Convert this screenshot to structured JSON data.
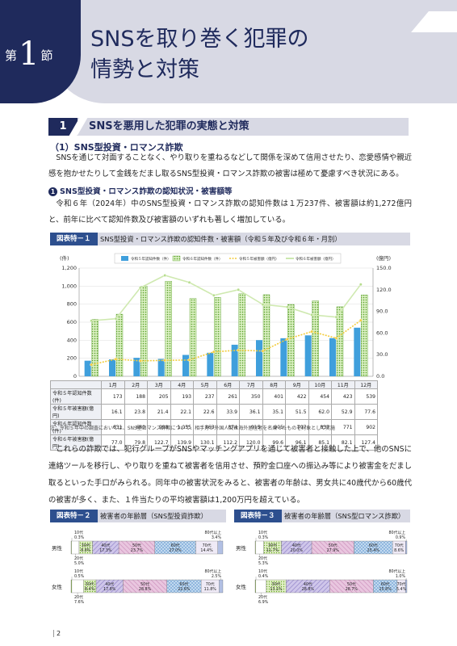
{
  "section": {
    "prefix": "第",
    "number": "1",
    "suffix": "節",
    "title_line1": "SNSを取り巻く犯罪の",
    "title_line2": "情勢と対策"
  },
  "heading1": {
    "number": "1",
    "text": "SNSを悪用した犯罪の実態と対策"
  },
  "subheading": "（1）SNS型投資・ロマンス詐欺",
  "para1": "SNSを通じて対面することなく、やり取りを重ねるなどして関係を深めて信用させたり、恋愛感情や親近感を抱かせたりして金銭をだまし取るSNS型投資・ロマンス詐欺の被害は極めて憂慮すべき状況にある。",
  "bullet": {
    "num": "1",
    "text": "SNS型投資・ロマンス詐欺の認知状況・被害額等"
  },
  "para2": "令和６年（2024年）中のSNS型投資・ロマンス詐欺の認知件数は１万237件、被害額は約1,272億円と、前年に比べて認知件数及び被害額のいずれも著しく増加している。",
  "fig1": {
    "tag": "図表特－１",
    "title": "SNS型投資・ロマンス詐欺の認知件数・被害額（令和５年及び令和６年・月別）"
  },
  "chart_data": {
    "type": "bar",
    "y_left_label": "(件)",
    "y_right_label": "(億円)",
    "ylim": [
      0,
      1200
    ],
    "ylim_right": [
      0,
      150
    ],
    "left_ticks": [
      "0",
      "200",
      "400",
      "600",
      "800",
      "1,000",
      "1,200"
    ],
    "right_ticks": [
      "0.0",
      "30.0",
      "60.0",
      "90.0",
      "120.0",
      "150.0"
    ],
    "categories": [
      "1月",
      "2月",
      "3月",
      "4月",
      "5月",
      "6月",
      "7月",
      "8月",
      "9月",
      "10月",
      "11月",
      "12月"
    ],
    "legend": [
      "令和５年認知件数（件）",
      "令和６年認知件数（件）",
      "令和５年被害額（億円）",
      "令和６年被害額（億円）"
    ],
    "series": [
      {
        "name": "令和５年認知件数(件)",
        "kind": "bar",
        "axis": "left",
        "color": "#3f9fdc",
        "values": [
          173,
          188,
          205,
          193,
          237,
          261,
          350,
          401,
          422,
          454,
          423,
          539
        ]
      },
      {
        "name": "令和６年認知件数(件)",
        "kind": "bar",
        "axis": "left",
        "color": "#8cc63f",
        "values": [
          631,
          689,
          998,
          1055,
          863,
          874,
          915,
          905,
          797,
          837,
          771,
          902
        ]
      },
      {
        "name": "令和５年被害額(億円)",
        "kind": "line",
        "axis": "right",
        "color": "#f2cc3d",
        "values": [
          16.1,
          23.8,
          21.4,
          22.1,
          22.6,
          33.9,
          36.1,
          35.1,
          51.5,
          62.0,
          52.9,
          77.6
        ]
      },
      {
        "name": "令和６年被害額(億円)",
        "kind": "line",
        "axis": "right",
        "color": "#cfe9b0",
        "values": [
          77.0,
          79.8,
          122.7,
          139.9,
          130.1,
          112.2,
          120.0,
          99.6,
          96.1,
          85.1,
          82.1,
          127.4
        ]
      }
    ],
    "table_rows": [
      {
        "label": "令和５年認知件数(件)",
        "cells": [
          "173",
          "188",
          "205",
          "193",
          "237",
          "261",
          "350",
          "401",
          "422",
          "454",
          "423",
          "539"
        ]
      },
      {
        "label": "令和５年被害額(億円)",
        "cells": [
          "16.1",
          "23.8",
          "21.4",
          "22.1",
          "22.6",
          "33.9",
          "36.1",
          "35.1",
          "51.5",
          "62.0",
          "52.9",
          "77.6"
        ]
      },
      {
        "label": "令和６年認知件数(件)",
        "cells": [
          "631",
          "689",
          "998",
          "1,055",
          "863",
          "874",
          "915",
          "905",
          "797",
          "837",
          "771",
          "902"
        ]
      },
      {
        "label": "令和６年被害額(億円)",
        "cells": [
          "77.0",
          "79.8",
          "122.7",
          "139.9",
          "130.1",
          "112.2",
          "120.0",
          "99.6",
          "96.1",
          "85.1",
          "82.1",
          "127.4"
        ]
      }
    ]
  },
  "fig1_note": "注：令和５年中の調査においては、SNS型ロマンス詐欺について、相手方が外国人又は海外居住者を名乗ったものを対象として実施",
  "para3": "これらの詐欺では、犯行グループがSNSやマッチングアプリを通じて被害者と接触した上で、他のSNSに連絡ツールを移行し、やり取りを重ねて被害者を信用させ、預貯金口座への振込み等により被害金をだまし取るといった手口がみられる。同年中の被害状況をみると、被害者の年齢は、男女共に40歳代から60歳代の被害が多く、また、１件当たりの平均被害額は1,200万円を超えている。",
  "fig2": {
    "tag": "図表特－２",
    "title": "被害者の年齢層（SNS型投資詐欺）"
  },
  "fig3": {
    "tag": "図表特－３",
    "title": "被害者の年齢層（SNS型ロマンス詐欺）"
  },
  "age_charts": [
    {
      "rows": [
        {
          "label": "男性",
          "segments": [
            {
              "name": "10代",
              "value": 0.3
            },
            {
              "name": "20代",
              "value": 5.0
            },
            {
              "name": "30代",
              "value": 8.8
            },
            {
              "name": "40代",
              "value": 17.3
            },
            {
              "name": "50代",
              "value": 23.7
            },
            {
              "name": "60代",
              "value": 27.0
            },
            {
              "name": "70代",
              "value": 14.4
            },
            {
              "name": "80代以上",
              "value": 3.4
            }
          ],
          "labels": {
            "teen": "10代\n0.3%",
            "twenty": "20代\n5.0%",
            "thirty": "30代\n8.8%",
            "forty": "40代\n17.3%",
            "fifty": "50代\n23.7%",
            "sixty": "60代\n27.0%",
            "seventy": "70代\n14.4%",
            "eighty": "80代以上\n3.4%"
          }
        },
        {
          "label": "女性",
          "segments": [
            {
              "name": "10代",
              "value": 0.5
            },
            {
              "name": "20代",
              "value": 7.6
            },
            {
              "name": "30代",
              "value": 8.4
            },
            {
              "name": "40代",
              "value": 17.8
            },
            {
              "name": "50代",
              "value": 28.8
            },
            {
              "name": "60代",
              "value": 22.6
            },
            {
              "name": "70代",
              "value": 11.8
            },
            {
              "name": "80代以上",
              "value": 2.5
            }
          ],
          "labels": {
            "teen": "10代\n0.5%",
            "twenty": "20代\n7.6%",
            "thirty": "30代\n8.4%",
            "forty": "40代\n17.8%",
            "fifty": "50代\n28.8%",
            "sixty": "60代\n22.6%",
            "seventy": "70代\n11.8%",
            "eighty": "80代以上\n2.5%"
          }
        }
      ]
    },
    {
      "rows": [
        {
          "label": "男性",
          "segments": [
            {
              "name": "10代",
              "value": 0.3
            },
            {
              "name": "20代",
              "value": 5.3
            },
            {
              "name": "30代",
              "value": 11.7
            },
            {
              "name": "40代",
              "value": 20.0
            },
            {
              "name": "50代",
              "value": 27.9
            },
            {
              "name": "60代",
              "value": 25.4
            },
            {
              "name": "70代",
              "value": 8.6
            },
            {
              "name": "80代以上",
              "value": 0.9
            }
          ],
          "labels": {
            "teen": "10代\n0.3%",
            "twenty": "20代\n5.3%",
            "thirty": "30代\n11.7%",
            "forty": "40代\n20.0%",
            "fifty": "50代\n27.9%",
            "sixty": "60代\n25.4%",
            "seventy": "70代\n8.6%",
            "eighty": "80代以上\n0.9%"
          }
        },
        {
          "label": "女性",
          "segments": [
            {
              "name": "10代",
              "value": 0.4
            },
            {
              "name": "20代",
              "value": 6.9
            },
            {
              "name": "30代",
              "value": 13.1
            },
            {
              "name": "40代",
              "value": 28.8
            },
            {
              "name": "50代",
              "value": 28.7
            },
            {
              "name": "60代",
              "value": 15.8
            },
            {
              "name": "70代",
              "value": 5.4
            },
            {
              "name": "80代以上",
              "value": 1.0
            }
          ],
          "labels": {
            "teen": "10代\n0.4%",
            "twenty": "20代\n6.9%",
            "thirty": "30代\n13.1%",
            "forty": "40代\n28.8%",
            "fifty": "50代\n28.7%",
            "sixty": "60代\n15.8%",
            "seventy": "70代\n5.4%",
            "eighty": "80代以上\n1.0%"
          }
        }
      ]
    }
  ],
  "page_number": "2"
}
